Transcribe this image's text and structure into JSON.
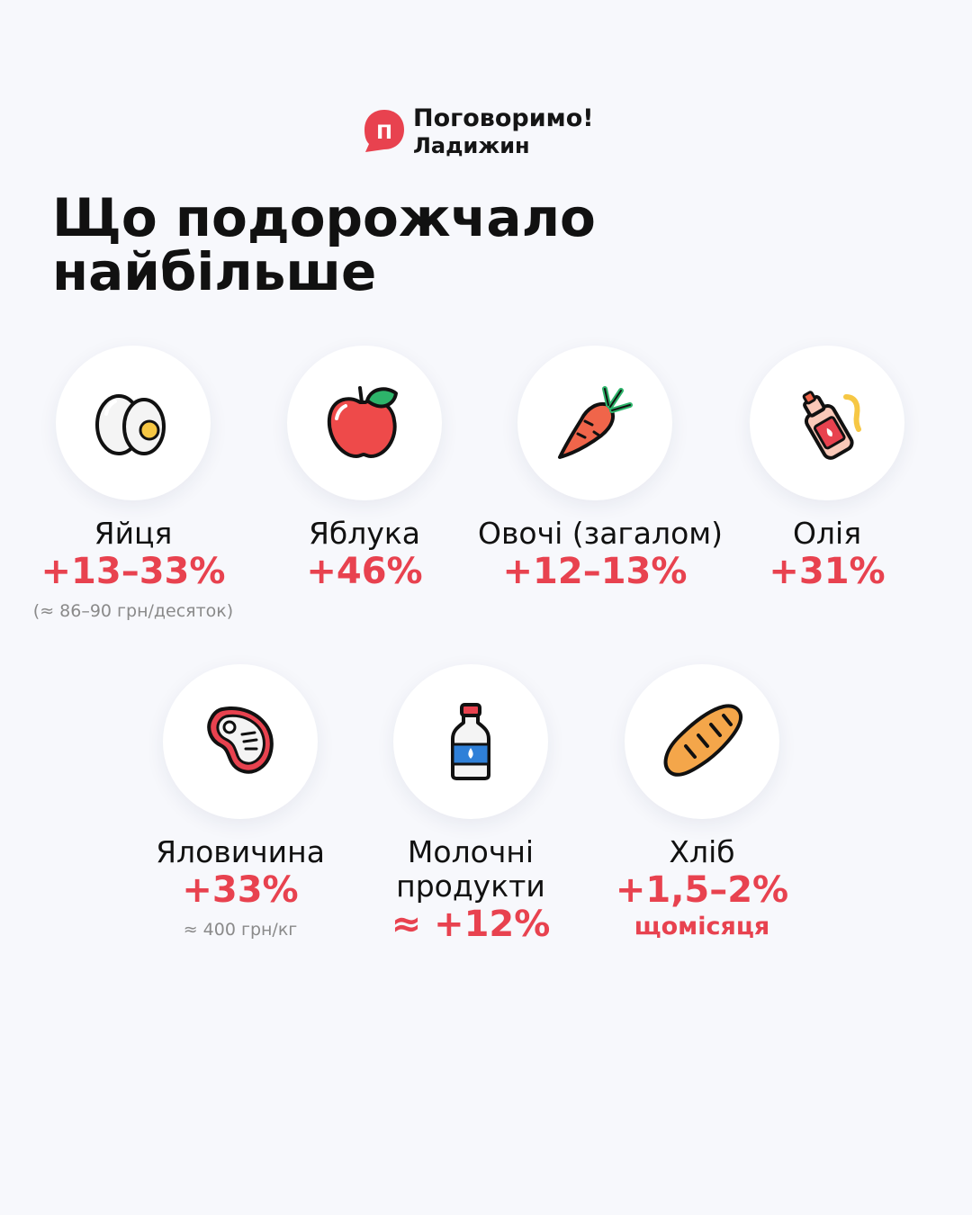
{
  "brand": {
    "name": "Поговоримо!",
    "city": "Ладижин",
    "mark_letter": "п",
    "color": "#e8424f"
  },
  "title": {
    "line1": "Що подорожчало",
    "line2": "найбільше"
  },
  "accent_color": "#e8424f",
  "items": [
    {
      "icon": "egg-icon",
      "label": "Яйця",
      "value": "+13–33%",
      "note": "(≈ 86–90 грн/десяток)"
    },
    {
      "icon": "apple-icon",
      "label": "Яблука",
      "value": "+46%"
    },
    {
      "icon": "carrot-icon",
      "label": "Овочі (загалом)",
      "value": "+12–13%"
    },
    {
      "icon": "oil-bottle-icon",
      "label": "Олія",
      "value": "+31%"
    },
    {
      "icon": "steak-icon",
      "label": "Яловичина",
      "value": "+33%",
      "note": "≈ 400 грн/кг"
    },
    {
      "icon": "milk-bottle-icon",
      "label_line1": "Молочні",
      "label_line2": "продукти",
      "value": "≈ +12%"
    },
    {
      "icon": "bread-icon",
      "label": "Хліб",
      "value": "+1,5–2%",
      "note": "щомісяця"
    }
  ]
}
